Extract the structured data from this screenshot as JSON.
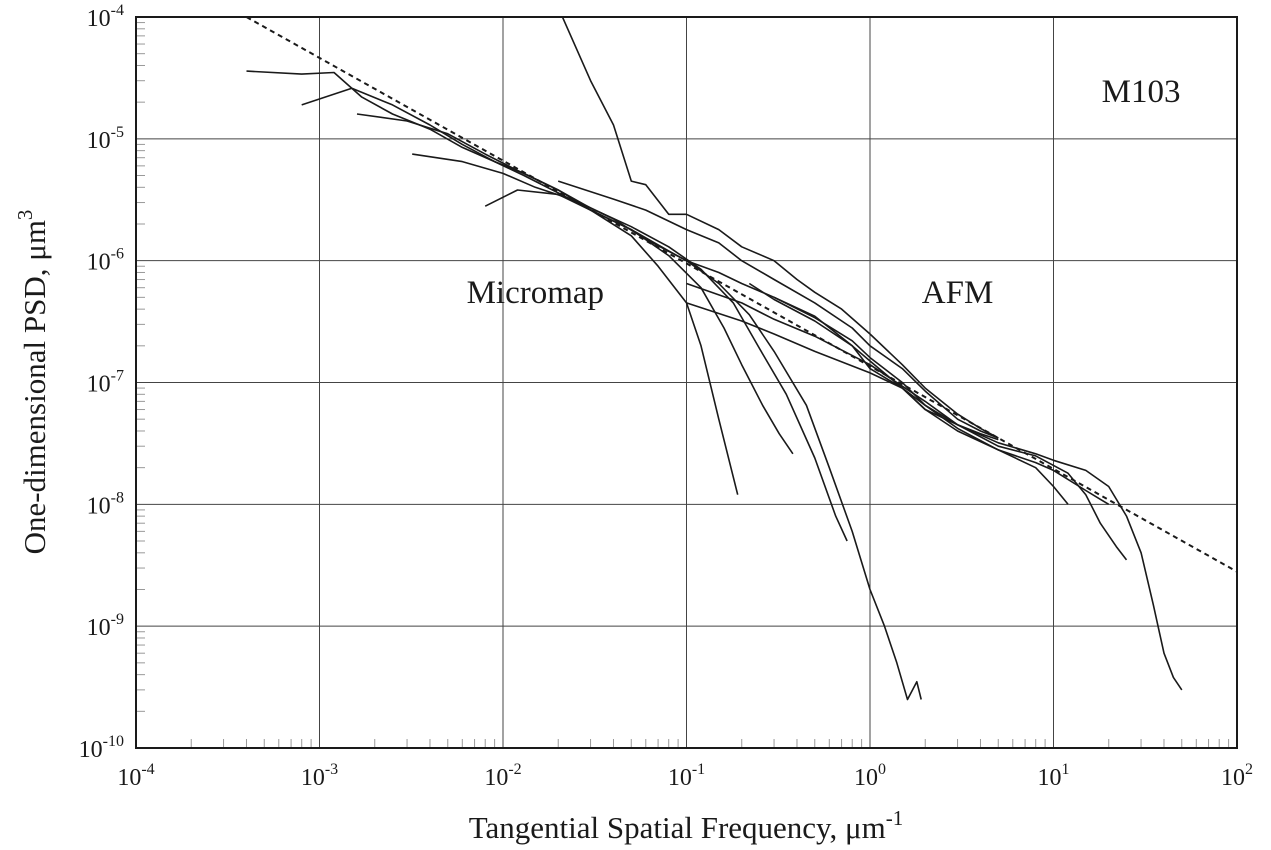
{
  "chart_data": {
    "type": "line",
    "xscale": "log",
    "yscale": "log",
    "xlim": [
      0.0001,
      100
    ],
    "ylim": [
      1e-10,
      0.0001
    ],
    "grid": true,
    "xlabel": "Tangential Spatial Frequency, μm",
    "xlabel_sup": "-1",
    "ylabel": "One-dimensional PSD, μm",
    "ylabel_sup": "3",
    "x_ticks": [
      {
        "base": "10",
        "exp": "-4"
      },
      {
        "base": "10",
        "exp": "-3"
      },
      {
        "base": "10",
        "exp": "-2"
      },
      {
        "base": "10",
        "exp": "-1"
      },
      {
        "base": "10",
        "exp": "0"
      },
      {
        "base": "10",
        "exp": "1"
      },
      {
        "base": "10",
        "exp": "2"
      }
    ],
    "y_ticks": [
      {
        "base": "10",
        "exp": "-10"
      },
      {
        "base": "10",
        "exp": "-9"
      },
      {
        "base": "10",
        "exp": "-8"
      },
      {
        "base": "10",
        "exp": "-7"
      },
      {
        "base": "10",
        "exp": "-6"
      },
      {
        "base": "10",
        "exp": "-5"
      },
      {
        "base": "10",
        "exp": "-4"
      }
    ],
    "annotations": [
      {
        "text": "M103",
        "x": 30,
        "y": 2e-05
      },
      {
        "text": "Micromap",
        "x": 0.015,
        "y": 4.5e-07
      },
      {
        "text": "AFM",
        "x": 3,
        "y": 4.5e-07
      }
    ],
    "fit_line": {
      "style": "dashed",
      "x": [
        0.0004,
        100
      ],
      "y": [
        0.0001,
        2.8e-09
      ]
    },
    "series": [
      {
        "x": [
          0.0004,
          0.0008,
          0.0012,
          0.0017,
          0.0025,
          0.004,
          0.006,
          0.009,
          0.013,
          0.02,
          0.03,
          0.05,
          0.07,
          0.1,
          0.12,
          0.15,
          0.19
        ],
        "y": [
          3.6e-05,
          3.4e-05,
          3.5e-05,
          2.2e-05,
          1.6e-05,
          1.2e-05,
          8.5e-06,
          6.5e-06,
          5.2e-06,
          3.8e-06,
          2.6e-06,
          1.6e-06,
          9e-07,
          4.5e-07,
          2e-07,
          5e-08,
          1.2e-08
        ]
      },
      {
        "x": [
          0.0008,
          0.0015,
          0.0025,
          0.004,
          0.006,
          0.009,
          0.013,
          0.02,
          0.03,
          0.05,
          0.08,
          0.12,
          0.16,
          0.2,
          0.26,
          0.32,
          0.38
        ],
        "y": [
          1.9e-05,
          2.6e-05,
          1.9e-05,
          1.3e-05,
          9e-06,
          6.5e-06,
          5e-06,
          3.6e-06,
          2.6e-06,
          1.8e-06,
          1.1e-06,
          6e-07,
          2.8e-07,
          1.4e-07,
          6.5e-08,
          3.8e-08,
          2.6e-08
        ]
      },
      {
        "x": [
          0.0016,
          0.003,
          0.005,
          0.008,
          0.012,
          0.02,
          0.03,
          0.05,
          0.08,
          0.12,
          0.18,
          0.25,
          0.35,
          0.5,
          0.65,
          0.75
        ],
        "y": [
          1.6e-05,
          1.4e-05,
          1.1e-05,
          7.5e-06,
          5.5e-06,
          3.8e-06,
          2.7e-06,
          1.9e-06,
          1.3e-06,
          8.5e-07,
          4.5e-07,
          1.9e-07,
          8e-08,
          2.4e-08,
          8e-09,
          5e-09
        ]
      },
      {
        "x": [
          0.0032,
          0.006,
          0.01,
          0.015,
          0.025,
          0.04,
          0.06,
          0.1,
          0.15,
          0.22,
          0.3,
          0.45,
          0.6,
          0.8,
          1.0,
          1.2,
          1.4,
          1.6,
          1.8,
          1.9
        ],
        "y": [
          7.5e-06,
          6.5e-06,
          5.2e-06,
          4e-06,
          3.1e-06,
          2.2e-06,
          1.5e-06,
          1e-06,
          6.5e-07,
          3.6e-07,
          1.8e-07,
          6.5e-08,
          2e-08,
          6e-09,
          2e-09,
          1e-09,
          5e-10,
          2.5e-10,
          3.5e-10,
          2.5e-10
        ]
      },
      {
        "x": [
          0.008,
          0.012,
          0.02,
          0.03,
          0.05,
          0.08,
          0.1,
          0.15,
          0.2,
          0.3,
          0.5,
          0.8,
          1,
          1.5,
          2,
          3,
          4,
          5
        ],
        "y": [
          2.8e-06,
          3.8e-06,
          3.5e-06,
          2.6e-06,
          1.8e-06,
          1.2e-06,
          1e-06,
          8e-07,
          6.5e-07,
          5e-07,
          3.5e-07,
          2e-07,
          1.3e-07,
          9e-08,
          6e-08,
          4.5e-08,
          3.8e-08,
          3.4e-08
        ]
      },
      {
        "x": [
          0.02,
          0.03,
          0.04,
          0.05,
          0.06,
          0.08,
          0.1,
          0.15,
          0.2,
          0.3,
          0.4,
          0.5,
          0.7,
          1,
          1.5,
          2,
          3,
          4,
          5
        ],
        "y": [
          0.00012,
          3e-05,
          1.3e-05,
          4.5e-06,
          4.2e-06,
          2.4e-06,
          2.4e-06,
          1.8e-06,
          1.3e-06,
          1e-06,
          7e-07,
          5.5e-07,
          4e-07,
          2.5e-07,
          1.4e-07,
          9e-08,
          5.5e-08,
          4.2e-08,
          3.5e-08
        ]
      },
      {
        "x": [
          0.02,
          0.04,
          0.06,
          0.1,
          0.15,
          0.2,
          0.3,
          0.5,
          0.8,
          1,
          1.5,
          2,
          3,
          4,
          5
        ],
        "y": [
          4.5e-06,
          3.2e-06,
          2.6e-06,
          1.8e-06,
          1.4e-06,
          1e-06,
          7e-07,
          4.5e-07,
          2.8e-07,
          2e-07,
          1.3e-07,
          8.5e-08,
          5e-08,
          4e-08,
          3.5e-08
        ]
      },
      {
        "x": [
          0.1,
          0.2,
          0.3,
          0.5,
          1,
          1.5,
          2,
          3,
          5,
          8,
          12,
          15,
          18,
          22,
          25
        ],
        "y": [
          4.5e-07,
          3.2e-07,
          2.5e-07,
          1.8e-07,
          1.2e-07,
          9e-08,
          6.5e-08,
          4.5e-08,
          3e-08,
          2.5e-08,
          1.8e-08,
          1.2e-08,
          7e-09,
          4.5e-09,
          3.5e-09
        ]
      },
      {
        "x": [
          0.1,
          0.2,
          0.3,
          0.5,
          1,
          2,
          3,
          5,
          8,
          10,
          15,
          20,
          25,
          30,
          35,
          40,
          45,
          50
        ],
        "y": [
          6.5e-07,
          4.5e-07,
          3.3e-07,
          2.4e-07,
          1.4e-07,
          7e-08,
          4.5e-08,
          3.2e-08,
          2.6e-08,
          2.3e-08,
          1.9e-08,
          1.4e-08,
          8e-09,
          4e-09,
          1.5e-09,
          6e-10,
          3.8e-10,
          3e-10
        ]
      },
      {
        "x": [
          0.22,
          0.3,
          0.5,
          0.8,
          1,
          1.5,
          2,
          3,
          5,
          8,
          10,
          15,
          18,
          20
        ],
        "y": [
          6.5e-07,
          4.8e-07,
          3.2e-07,
          2e-07,
          1.5e-07,
          9e-08,
          6e-08,
          4e-08,
          2.8e-08,
          2.2e-08,
          1.9e-08,
          1.3e-08,
          1.1e-08,
          1e-08
        ]
      },
      {
        "x": [
          0.3,
          0.5,
          0.8,
          1,
          1.5,
          2,
          3,
          5,
          8,
          10,
          12
        ],
        "y": [
          5e-07,
          3.4e-07,
          2.2e-07,
          1.6e-07,
          1e-07,
          6.5e-08,
          4.2e-08,
          2.8e-08,
          2e-08,
          1.4e-08,
          1e-08
        ]
      }
    ]
  }
}
